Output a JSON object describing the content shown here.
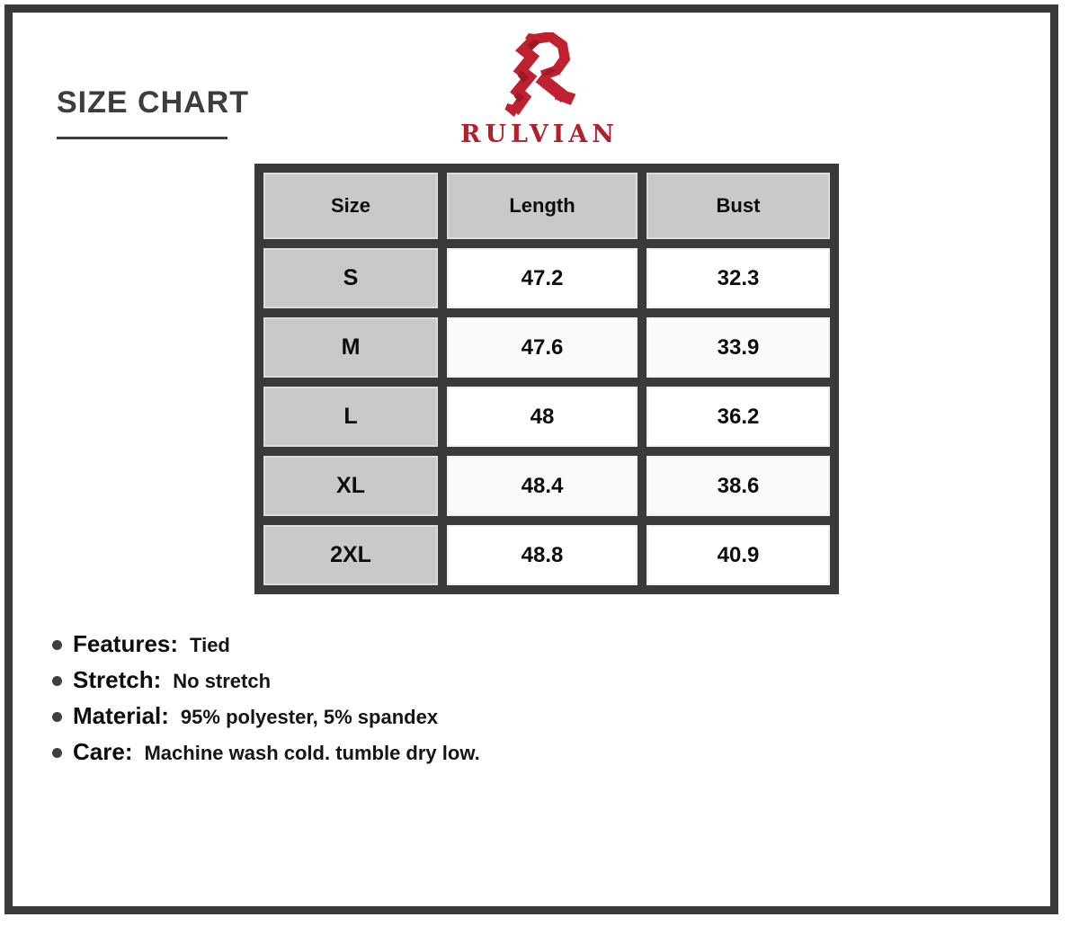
{
  "header": {
    "title": "SIZE CHART",
    "brand": "RULVIAN"
  },
  "colors": {
    "frame_dark": "#3a3a3a",
    "title_gray": "#3d3d3d",
    "brand_red": "#b0202d",
    "logo_red": "#c0202f",
    "logo_red_dark": "#9c1a26",
    "header_cell_gray": "#c9c9c9",
    "data_cell_white": "#ffffff"
  },
  "icons": {
    "logo": "rulvian-r-logo-icon",
    "list_marker": "bullet-dot-icon"
  },
  "chart_data": {
    "type": "table",
    "title": "SIZE CHART",
    "columns": [
      "Size",
      "Length",
      "Bust"
    ],
    "rows": [
      [
        "S",
        "47.2",
        "32.3"
      ],
      [
        "M",
        "47.6",
        "33.9"
      ],
      [
        "L",
        "48",
        "36.2"
      ],
      [
        "XL",
        "48.4",
        "38.6"
      ],
      [
        "2XL",
        "48.8",
        "40.9"
      ]
    ]
  },
  "details": [
    {
      "label": "Features:",
      "value": "Tied"
    },
    {
      "label": "Stretch:",
      "value": "No stretch"
    },
    {
      "label": "Material:",
      "value": "95% polyester, 5% spandex"
    },
    {
      "label": "Care:",
      "value": "Machine wash cold. tumble dry low."
    }
  ]
}
